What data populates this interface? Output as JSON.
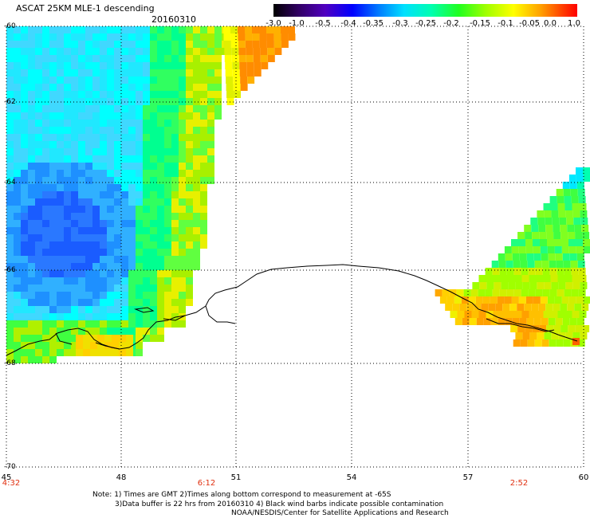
{
  "header": {
    "title": "ASCAT 25KM MLE-1 descending",
    "date": "20160310"
  },
  "colorbar": {
    "labels": [
      "-3.0",
      "-1.0",
      "-0.5",
      "-0.4",
      "-0.35",
      "-0.3",
      "-0.25",
      "-0.2",
      "-0.15",
      "-0.1",
      "-0.05",
      "0.0",
      "1.0"
    ],
    "colors": [
      "#000000",
      "#4b0082",
      "#0000ff",
      "#0050ff",
      "#00a0ff",
      "#00ffff",
      "#00ff90",
      "#00ff00",
      "#a0ff00",
      "#ffff00",
      "#ffa000",
      "#ff5000",
      "#ff0000"
    ]
  },
  "map": {
    "lat_labels": [
      "-60",
      "-62",
      "-64",
      "-66",
      "-68",
      "-70"
    ],
    "lon_labels": [
      "45",
      "48",
      "51",
      "54",
      "57",
      "60"
    ],
    "time_labels": [
      "4:32",
      "6:12",
      "2:52"
    ]
  },
  "notes": {
    "line1": "Note: 1) Times are GMT 2)Times along bottom correspond to measurement at -65S",
    "line2": "3)Data buffer is 22 hrs from 20160310 4) Black wind barbs indicate possible contamination",
    "line3": "NOAA/NESDIS/Center for Satellite Applications and Research"
  }
}
